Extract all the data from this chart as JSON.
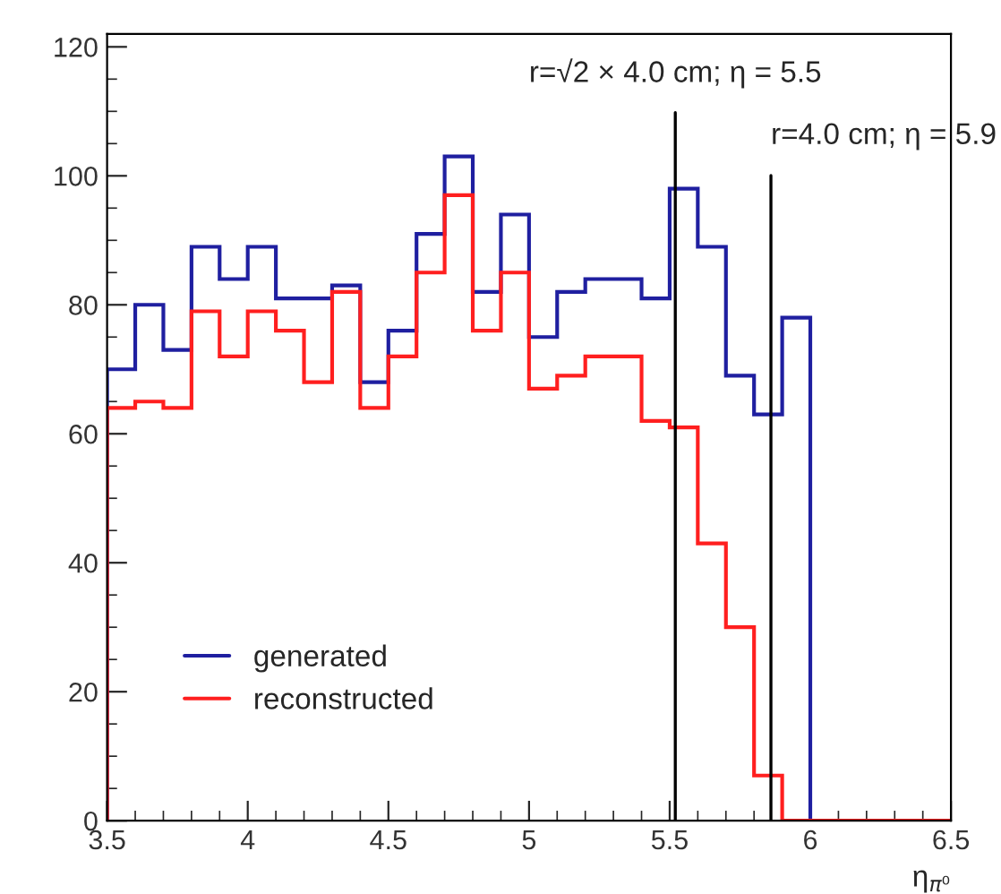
{
  "chart_data": {
    "type": "histogram",
    "xlabel": "η$_{π⁰}$",
    "bins": [
      3.5,
      3.6,
      3.7,
      3.8,
      3.9,
      4.0,
      4.1,
      4.2,
      4.3,
      4.4,
      4.5,
      4.6,
      4.7,
      4.8,
      4.9,
      5.0,
      5.1,
      5.2,
      5.3,
      5.4,
      5.5,
      5.6,
      5.7,
      5.8,
      5.9,
      6.0,
      6.1,
      6.2,
      6.3,
      6.4,
      6.5
    ],
    "series": [
      {
        "name": "generated",
        "color": "#1f1fa0",
        "bins": [
          3.5,
          3.6,
          3.7,
          3.8,
          3.9,
          4.0,
          4.1,
          4.2,
          4.3,
          4.4,
          4.5,
          4.6,
          4.7,
          4.8,
          4.9,
          5.0,
          5.1,
          5.2,
          5.3,
          5.4,
          5.5,
          5.6,
          5.7,
          5.8,
          5.9,
          6.0
        ],
        "values": [
          70,
          80,
          73,
          89,
          84,
          89,
          81,
          81,
          83,
          68,
          76,
          91,
          103,
          82,
          94,
          75,
          82,
          84,
          84,
          81,
          98,
          89,
          69,
          63,
          78
        ]
      },
      {
        "name": "reconstructed",
        "color": "#ff1f1f",
        "values": [
          64,
          65,
          64,
          79,
          72,
          79,
          76,
          68,
          82,
          64,
          72,
          85,
          97,
          76,
          85,
          67,
          69,
          72,
          72,
          62,
          61,
          43,
          30,
          7,
          0,
          0,
          0,
          0,
          0,
          0
        ]
      }
    ],
    "xlim": [
      3.5,
      6.5
    ],
    "ylim": [
      0,
      122
    ],
    "xticks": [
      3.5,
      {
        "value": 4.0,
        "label": "4"
      },
      4.5,
      {
        "value": 5.0,
        "label": "5"
      },
      5.5,
      {
        "value": 6.0,
        "label": "6"
      },
      6.5
    ],
    "yticks": [
      0,
      20,
      40,
      60,
      80,
      100,
      120
    ],
    "ref_lines": [
      {
        "axis": "x",
        "value": 5.52,
        "label": "r=√2 × 4.0 cm; η = 5.5",
        "color": "#000000"
      },
      {
        "axis": "x",
        "value": 5.86,
        "label": "r=4.0 cm; η = 5.9",
        "color": "#000000"
      }
    ],
    "legend": "bottom left",
    "grid": false
  }
}
